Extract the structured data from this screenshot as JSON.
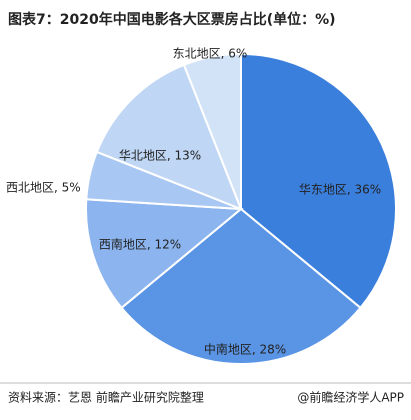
{
  "chart_data": {
    "type": "pie",
    "title": "图表7：2020年中国电影各大区票房占比(单位：%)",
    "categories": [
      "华东地区",
      "中南地区",
      "西南地区",
      "西北地区",
      "华北地区",
      "东北地区"
    ],
    "values": [
      36,
      28,
      12,
      5,
      13,
      6
    ],
    "value_labels": [
      "华东地区, 36%",
      "中南地区, 28%",
      "西南地区, 12%",
      "西北地区, 5%",
      "华北地区, 13%",
      "东北地区, 6%"
    ],
    "colors": [
      "#3b7fdc",
      "#5a94e4",
      "#8cb4ee",
      "#a8c7f2",
      "#bfd6f5",
      "#d2e3f8"
    ],
    "source": "资料来源：艺恩 前瞻产业研究院整理",
    "footer": "@前瞻经济学人APP"
  }
}
